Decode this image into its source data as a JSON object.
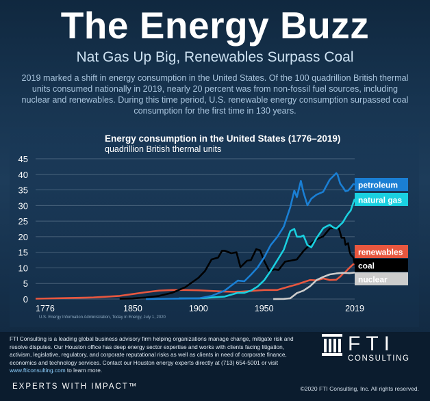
{
  "header": {
    "title": "The Energy Buzz",
    "subtitle": "Nat Gas Up Big, Renewables Surpass Coal",
    "intro": "2019 marked a shift in energy consumption in the United States. Of the 100 quadrillion British thermal units consumed nationally in 2019, nearly 20 percent was from non-fossil fuel sources, including nuclear and renewables. During this time period, U.S. renewable energy consumption surpassed coal consumption for the first time in 130 years."
  },
  "chart_data": {
    "type": "line",
    "title": "Energy consumption in the United States (1776–2019)",
    "subtitle": "quadrillion British thermal units",
    "source": "U.S. Energy Information Administration, Today in Energy, July 1, 2020",
    "xlim": [
      1776,
      2019
    ],
    "ylim": [
      0,
      45
    ],
    "x_ticks": [
      1776,
      1850,
      1900,
      1950,
      2019
    ],
    "y_ticks": [
      0,
      5,
      10,
      15,
      20,
      25,
      30,
      35,
      40,
      45
    ],
    "grid": true,
    "legend": "right, end-of-line labels",
    "series": [
      {
        "name": "renewables",
        "color": "#e8573f",
        "points": [
          [
            1776,
            0.1
          ],
          [
            1800,
            0.3
          ],
          [
            1820,
            0.5
          ],
          [
            1840,
            1.0
          ],
          [
            1850,
            1.6
          ],
          [
            1860,
            2.2
          ],
          [
            1870,
            2.7
          ],
          [
            1880,
            2.9
          ],
          [
            1890,
            2.9
          ],
          [
            1900,
            2.8
          ],
          [
            1910,
            2.6
          ],
          [
            1920,
            2.4
          ],
          [
            1930,
            2.3
          ],
          [
            1940,
            2.6
          ],
          [
            1950,
            2.9
          ],
          [
            1960,
            2.9
          ],
          [
            1970,
            4.1
          ],
          [
            1975,
            4.7
          ],
          [
            1980,
            5.4
          ],
          [
            1985,
            6.1
          ],
          [
            1990,
            6.0
          ],
          [
            1995,
            6.6
          ],
          [
            2000,
            6.1
          ],
          [
            2005,
            6.2
          ],
          [
            2008,
            7.2
          ],
          [
            2010,
            8.1
          ],
          [
            2012,
            8.7
          ],
          [
            2014,
            9.6
          ],
          [
            2016,
            10.4
          ],
          [
            2018,
            11.2
          ],
          [
            2019,
            11.5
          ]
        ]
      },
      {
        "name": "coal",
        "color": "#000000",
        "points": [
          [
            1840,
            0.1
          ],
          [
            1850,
            0.2
          ],
          [
            1860,
            0.5
          ],
          [
            1870,
            1.0
          ],
          [
            1880,
            2.0
          ],
          [
            1890,
            3.8
          ],
          [
            1900,
            6.8
          ],
          [
            1905,
            9.0
          ],
          [
            1910,
            12.7
          ],
          [
            1915,
            13.3
          ],
          [
            1918,
            15.5
          ],
          [
            1920,
            15.5
          ],
          [
            1925,
            14.7
          ],
          [
            1929,
            15.0
          ],
          [
            1932,
            10.2
          ],
          [
            1937,
            12.3
          ],
          [
            1940,
            12.5
          ],
          [
            1944,
            16.0
          ],
          [
            1947,
            15.6
          ],
          [
            1950,
            12.3
          ],
          [
            1954,
            9.0
          ],
          [
            1958,
            9.5
          ],
          [
            1961,
            9.3
          ],
          [
            1966,
            12.0
          ],
          [
            1970,
            12.3
          ],
          [
            1975,
            12.7
          ],
          [
            1980,
            15.4
          ],
          [
            1985,
            17.5
          ],
          [
            1990,
            19.2
          ],
          [
            1995,
            20.1
          ],
          [
            2000,
            22.6
          ],
          [
            2005,
            22.8
          ],
          [
            2007,
            22.7
          ],
          [
            2009,
            19.7
          ],
          [
            2011,
            19.7
          ],
          [
            2012,
            17.4
          ],
          [
            2014,
            17.9
          ],
          [
            2015,
            15.5
          ],
          [
            2016,
            14.2
          ],
          [
            2018,
            13.3
          ],
          [
            2019,
            11.3
          ]
        ]
      },
      {
        "name": "nuclear",
        "color": "#cccccc",
        "points": [
          [
            1957,
            0
          ],
          [
            1965,
            0.04
          ],
          [
            1970,
            0.24
          ],
          [
            1975,
            1.9
          ],
          [
            1980,
            2.7
          ],
          [
            1985,
            4.1
          ],
          [
            1990,
            6.1
          ],
          [
            1995,
            7.1
          ],
          [
            2000,
            7.9
          ],
          [
            2005,
            8.2
          ],
          [
            2010,
            8.4
          ],
          [
            2015,
            8.3
          ],
          [
            2019,
            8.5
          ]
        ]
      },
      {
        "name": "natural gas",
        "color": "#1ad0e0",
        "points": [
          [
            1885,
            0.2
          ],
          [
            1900,
            0.25
          ],
          [
            1910,
            0.5
          ],
          [
            1920,
            0.8
          ],
          [
            1930,
            2.0
          ],
          [
            1935,
            2.0
          ],
          [
            1940,
            2.7
          ],
          [
            1945,
            4.0
          ],
          [
            1950,
            6.0
          ],
          [
            1955,
            9.0
          ],
          [
            1960,
            12.4
          ],
          [
            1965,
            15.8
          ],
          [
            1970,
            21.8
          ],
          [
            1973,
            22.5
          ],
          [
            1975,
            20.0
          ],
          [
            1978,
            20.0
          ],
          [
            1980,
            20.4
          ],
          [
            1983,
            17.3
          ],
          [
            1986,
            16.6
          ],
          [
            1990,
            19.6
          ],
          [
            1995,
            22.7
          ],
          [
            1997,
            23.2
          ],
          [
            2000,
            23.8
          ],
          [
            2003,
            22.9
          ],
          [
            2005,
            22.6
          ],
          [
            2008,
            23.8
          ],
          [
            2010,
            24.6
          ],
          [
            2012,
            26.1
          ],
          [
            2014,
            27.4
          ],
          [
            2016,
            28.4
          ],
          [
            2018,
            31.0
          ],
          [
            2019,
            32.1
          ]
        ]
      },
      {
        "name": "petroleum",
        "color": "#1a7fd4",
        "points": [
          [
            1860,
            0
          ],
          [
            1880,
            0.1
          ],
          [
            1900,
            0.2
          ],
          [
            1910,
            1.0
          ],
          [
            1920,
            2.7
          ],
          [
            1925,
            4.3
          ],
          [
            1930,
            5.9
          ],
          [
            1935,
            5.7
          ],
          [
            1940,
            7.8
          ],
          [
            1945,
            10.1
          ],
          [
            1950,
            13.3
          ],
          [
            1955,
            17.3
          ],
          [
            1960,
            19.9
          ],
          [
            1965,
            23.2
          ],
          [
            1970,
            29.5
          ],
          [
            1973,
            34.8
          ],
          [
            1975,
            32.7
          ],
          [
            1978,
            37.9
          ],
          [
            1980,
            34.2
          ],
          [
            1983,
            30.1
          ],
          [
            1986,
            32.2
          ],
          [
            1990,
            33.5
          ],
          [
            1995,
            34.4
          ],
          [
            2000,
            38.3
          ],
          [
            2005,
            40.4
          ],
          [
            2006,
            39.8
          ],
          [
            2008,
            37.0
          ],
          [
            2010,
            35.9
          ],
          [
            2012,
            34.6
          ],
          [
            2014,
            34.8
          ],
          [
            2016,
            35.7
          ],
          [
            2018,
            36.9
          ],
          [
            2019,
            36.7
          ]
        ]
      }
    ],
    "end_labels": [
      {
        "name": "petroleum",
        "bg": "#1a7fd4",
        "fg": "#ffffff"
      },
      {
        "name": "natural gas",
        "bg": "#1ad0e0",
        "fg": "#ffffff"
      },
      {
        "name": "renewables",
        "bg": "#e8573f",
        "fg": "#ffffff"
      },
      {
        "name": "coal",
        "bg": "#000000",
        "fg": "#ffffff"
      },
      {
        "name": "nuclear",
        "bg": "#cccccc",
        "fg": "#ffffff"
      }
    ]
  },
  "footer": {
    "about": "FTI Consulting is a leading global business advisory firm helping organizations manage change, mitigate risk and resolve disputes. Our Houston office has deep energy sector expertise and works with clients facing litigation, activism, legislative, regulatory, and corporate reputational risks as well as clients in need of corporate finance, economics and technology services. Contact our Houston energy experts directly at (713) 654-5001 or visit ",
    "link": "www.fticonsulting.com",
    "about_end": " to learn more.",
    "logo_main": "FTI",
    "logo_sub": "CONSULTING",
    "tagline": "EXPERTS WITH IMPACT™",
    "copyright": "©2020 FTI Consulting, Inc. All rights reserved."
  }
}
